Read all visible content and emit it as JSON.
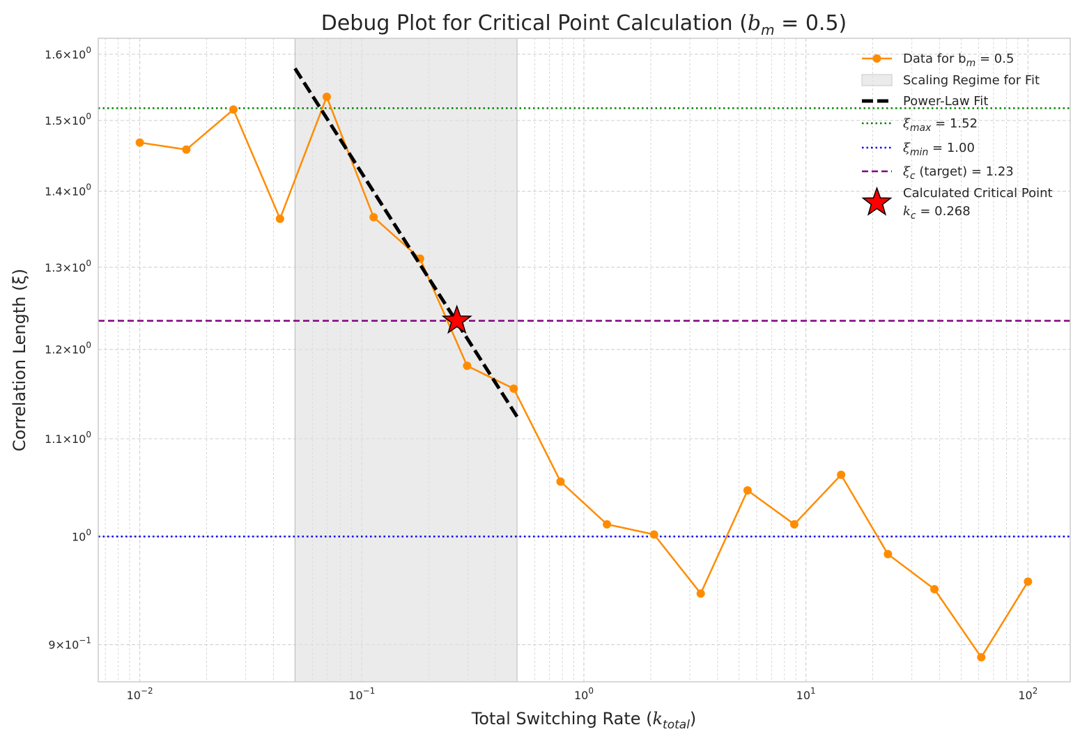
{
  "chart_data": {
    "type": "line",
    "title": "Debug Plot for Critical Point Calculation (b_m = 0.5)",
    "title_parts": {
      "main": "Debug Plot for Critical Point Calculation (",
      "var": "b",
      "sub": "m",
      "rest": " = 0.5)"
    },
    "xlabel_parts": {
      "main": "Total Switching Rate (",
      "var": "k",
      "sub": "total",
      "rest": ")"
    },
    "ylabel": "Correlation Length (ξ)",
    "x_scale": "log",
    "y_scale": "log",
    "xlim": [
      0.0065,
      155
    ],
    "ylim": [
      0.868,
      1.625
    ],
    "grid": true,
    "x_ticks": [
      {
        "value": 0.01,
        "base": "10",
        "exp": "−2"
      },
      {
        "value": 0.1,
        "base": "10",
        "exp": "−1"
      },
      {
        "value": 1,
        "base": "10",
        "exp": "0"
      },
      {
        "value": 10,
        "base": "10",
        "exp": "1"
      },
      {
        "value": 100,
        "base": "10",
        "exp": "2"
      }
    ],
    "y_ticks": [
      {
        "value": 0.9,
        "mant": "9",
        "exp": "−1"
      },
      {
        "value": 1.0,
        "mant": "",
        "exp": "0"
      },
      {
        "value": 1.1,
        "mant": "1.1",
        "exp": "0"
      },
      {
        "value": 1.2,
        "mant": "1.2",
        "exp": "0"
      },
      {
        "value": 1.3,
        "mant": "1.3",
        "exp": "0"
      },
      {
        "value": 1.4,
        "mant": "1.4",
        "exp": "0"
      },
      {
        "value": 1.5,
        "mant": "1.5",
        "exp": "0"
      },
      {
        "value": 1.6,
        "mant": "1.6",
        "exp": "0"
      }
    ],
    "series": [
      {
        "name": "Data for b_m = 0.5",
        "color": "#ff8c00",
        "x": [
          0.01,
          0.0162,
          0.0264,
          0.0428,
          0.0695,
          0.113,
          0.183,
          0.298,
          0.483,
          0.785,
          1.27,
          2.07,
          3.36,
          5.46,
          8.86,
          14.4,
          23.4,
          37.9,
          61.6,
          100
        ],
        "y": [
          1.468,
          1.458,
          1.516,
          1.363,
          1.535,
          1.365,
          1.311,
          1.181,
          1.155,
          1.055,
          1.012,
          1.002,
          0.946,
          1.046,
          1.012,
          1.062,
          0.983,
          0.95,
          0.889,
          0.957
        ]
      }
    ],
    "fit_region": {
      "name": "Scaling Regime for Fit",
      "x": [
        0.05,
        0.5
      ],
      "color": "#e0e0e0"
    },
    "fit_line": {
      "name": "Power-Law Fit",
      "x": [
        0.05,
        0.5
      ],
      "y": [
        1.578,
        1.124
      ],
      "color": "#000000"
    },
    "hlines": [
      {
        "name": "ξ_max = 1.52",
        "y": 1.518,
        "color": "#008000",
        "style": "dotted"
      },
      {
        "name": "ξ_min = 1.00",
        "y": 1.0,
        "color": "#0000ff",
        "style": "dotted"
      },
      {
        "name": "ξ_c (target) = 1.23",
        "y": 1.234,
        "color": "#800080",
        "style": "dashed"
      }
    ],
    "critical_point": {
      "name": "Calculated Critical Point",
      "x": 0.268,
      "y": 1.234,
      "color": "#ff0000",
      "label": "k_c = 0.268"
    },
    "legend": {
      "position": "top-right",
      "entries": [
        {
          "key": "data",
          "parts": [
            "Data for b",
            "m",
            " = 0.5"
          ]
        },
        {
          "key": "region",
          "parts": [
            "Scaling Regime for Fit"
          ]
        },
        {
          "key": "fit",
          "parts": [
            "Power-Law Fit"
          ]
        },
        {
          "key": "hmax",
          "parts": [
            "ξ",
            "max",
            " = 1.52"
          ]
        },
        {
          "key": "hmin",
          "parts": [
            "ξ",
            "min",
            " = 1.00"
          ]
        },
        {
          "key": "hc",
          "parts": [
            "ξ",
            "c",
            " (target) = 1.23"
          ]
        },
        {
          "key": "star",
          "parts": [
            "Calculated Critical Point"
          ],
          "line2": [
            "k",
            "c",
            " = 0.268"
          ]
        }
      ]
    }
  }
}
